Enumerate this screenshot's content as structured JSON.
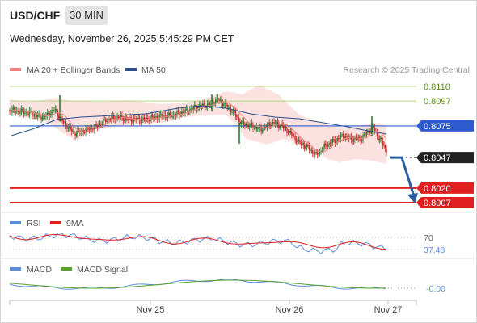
{
  "header": {
    "symbol": "USD/CHF",
    "timeframe": "30 MIN",
    "datetime": "Wednesday, November 26, 2025 5:45:29 PM CET"
  },
  "legend": {
    "ma20": "MA 20 + Bollinger Bands",
    "ma50": "MA 50",
    "credit": "Research © 2025 Trading Central",
    "rsi": "RSI",
    "rsi_ma": "9MA",
    "macd": "MACD",
    "macd_signal": "MACD Signal"
  },
  "colors": {
    "ma20": "#f08080",
    "ma50": "#2c4f8c",
    "bollinger_fill": "#fbdcdc",
    "up_candle": "#2e7d32",
    "down_candle": "#c62828",
    "resistance_line": "#b7d78a",
    "pivot_line": "#2f5bd1",
    "support_line": "#e02020",
    "rsi": "#5b8dd9",
    "rsi_ma": "#e02020",
    "macd": "#5b8dd9",
    "macd_signal": "#5aa02c"
  },
  "chart_data": [
    {
      "type": "candlestick",
      "title": "USD/CHF",
      "ylim": [
        0.8,
        0.8115
      ],
      "x_labels": [
        "Nov 25",
        "Nov 26",
        "Nov 27"
      ],
      "levels": [
        {
          "label": "0.8110",
          "value": 0.811,
          "kind": "resistance"
        },
        {
          "label": "0.8097",
          "value": 0.8097,
          "kind": "resistance"
        },
        {
          "label": "0.8075",
          "value": 0.8075,
          "kind": "pivot"
        },
        {
          "label": "0.8020",
          "value": 0.802,
          "kind": "support"
        },
        {
          "label": "0.8007",
          "value": 0.8007,
          "kind": "support"
        }
      ],
      "last_price": {
        "label": "0.8047",
        "value": 0.8047
      },
      "forecast_arrow": {
        "from": 0.8047,
        "to": 0.8007,
        "direction": "down"
      }
    },
    {
      "type": "line",
      "title": "RSI",
      "series": [
        {
          "name": "RSI"
        },
        {
          "name": "9MA"
        }
      ],
      "levels": [
        {
          "label": "70",
          "value": 70
        }
      ],
      "last_value": {
        "label": "37.48",
        "value": 37.48
      }
    },
    {
      "type": "line",
      "title": "MACD",
      "series": [
        {
          "name": "MACD"
        },
        {
          "name": "MACD Signal"
        }
      ],
      "last_value": {
        "label": "-0.00",
        "value": 0.0
      }
    }
  ]
}
